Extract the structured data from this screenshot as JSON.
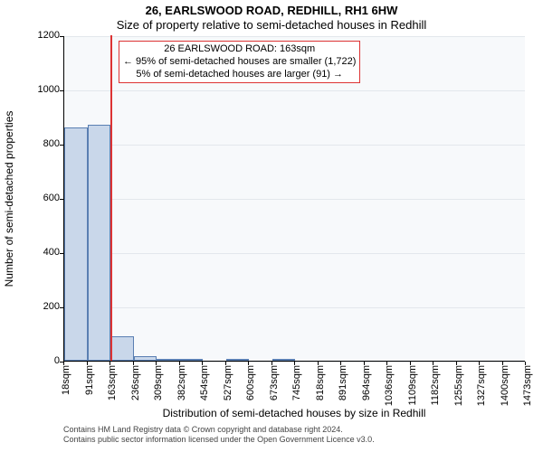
{
  "titles": {
    "line1": "26, EARLSWOOD ROAD, REDHILL, RH1 6HW",
    "line2": "Size of property relative to semi-detached houses in Redhill"
  },
  "axes": {
    "ylabel": "Number of semi-detached properties",
    "xlabel": "Distribution of semi-detached houses by size in Redhill",
    "ylim": [
      0,
      1200
    ],
    "yticks": [
      0,
      200,
      400,
      600,
      800,
      1000,
      1200
    ],
    "xtick_labels": [
      "18sqm",
      "91sqm",
      "163sqm",
      "236sqm",
      "309sqm",
      "382sqm",
      "454sqm",
      "527sqm",
      "600sqm",
      "673sqm",
      "745sqm",
      "818sqm",
      "891sqm",
      "964sqm",
      "1036sqm",
      "1109sqm",
      "1182sqm",
      "1255sqm",
      "1327sqm",
      "1400sqm",
      "1473sqm"
    ],
    "label_fontsize": 12,
    "tick_fontsize": 11
  },
  "chart": {
    "type": "histogram",
    "background_color": "#f7f9fb",
    "grid_color": "#e3e7ec",
    "bar_fill": "#c9d7ea",
    "bar_stroke": "#5a7fb2",
    "values": [
      860,
      870,
      90,
      18,
      8,
      3,
      0,
      2,
      0,
      1,
      0,
      0,
      0,
      0,
      0,
      0,
      0,
      0,
      0,
      0
    ],
    "bar_count": 20,
    "cutoff_index": 2,
    "cutoff_color": "#d33"
  },
  "annotation": {
    "line1": "26 EARLSWOOD ROAD: 163sqm",
    "line2": "← 95% of semi-detached houses are smaller (1,722)",
    "line3": "5% of semi-detached houses are larger (91) →",
    "border_color": "#d33",
    "fontsize": 11
  },
  "footer": {
    "line1": "Contains HM Land Registry data © Crown copyright and database right 2024.",
    "line2": "Contains public sector information licensed under the Open Government Licence v3.0."
  }
}
